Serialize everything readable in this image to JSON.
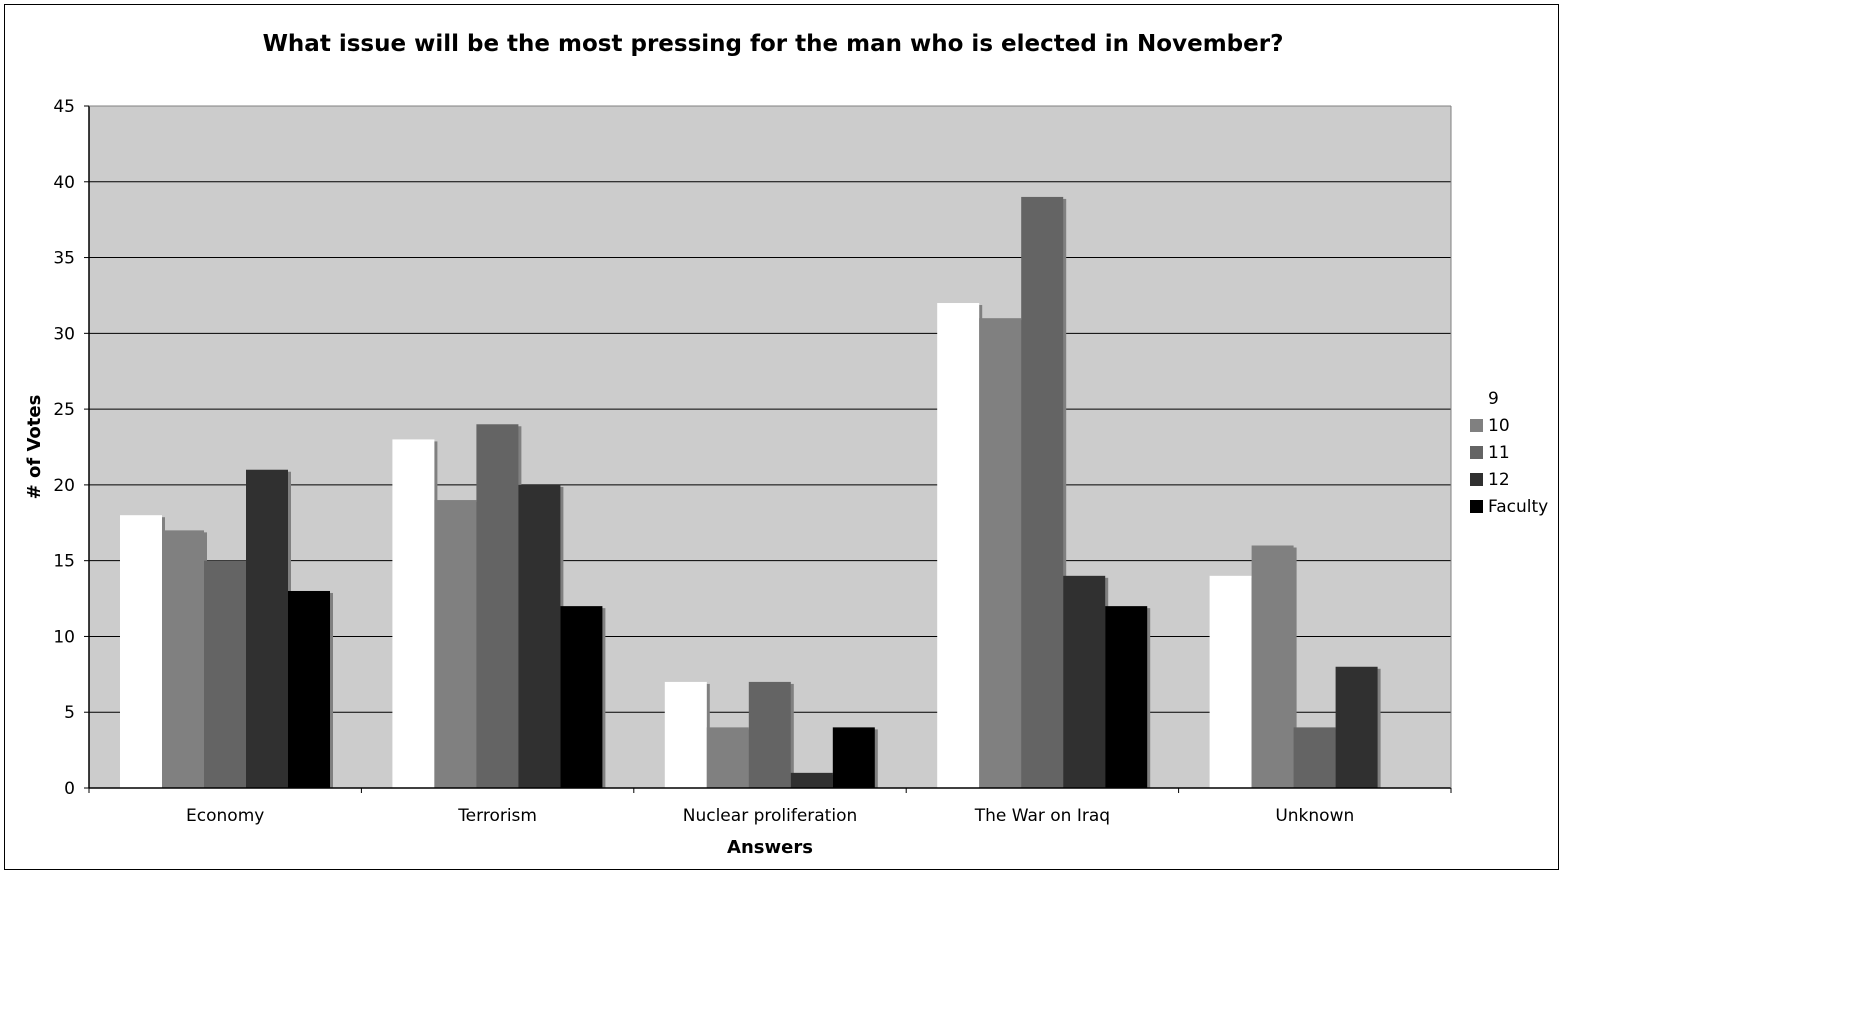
{
  "chart_data": {
    "type": "bar",
    "title": "What issue will be the most pressing for the man who is elected in November?",
    "xlabel": "Answers",
    "ylabel": "# of Votes",
    "ylim": [
      0,
      45
    ],
    "yticks": [
      0,
      5,
      10,
      15,
      20,
      25,
      30,
      35,
      40,
      45
    ],
    "grid": true,
    "legend_position": "right",
    "categories": [
      "Economy",
      "Terrorism",
      "Nuclear proliferation",
      "The War on Iraq",
      "Unknown"
    ],
    "series": [
      {
        "name": "9",
        "color": "#ffffff",
        "values": [
          18,
          23,
          7,
          32,
          14
        ]
      },
      {
        "name": "10",
        "color": "#808080",
        "values": [
          17,
          19,
          4,
          31,
          16
        ]
      },
      {
        "name": "11",
        "color": "#646464",
        "values": [
          15,
          24,
          7,
          39,
          4
        ]
      },
      {
        "name": "12",
        "color": "#303030",
        "values": [
          21,
          20,
          1,
          14,
          8
        ]
      },
      {
        "name": "Faculty",
        "color": "#000000",
        "values": [
          13,
          12,
          4,
          12,
          0
        ]
      }
    ],
    "plot_background": "#cccccc"
  }
}
